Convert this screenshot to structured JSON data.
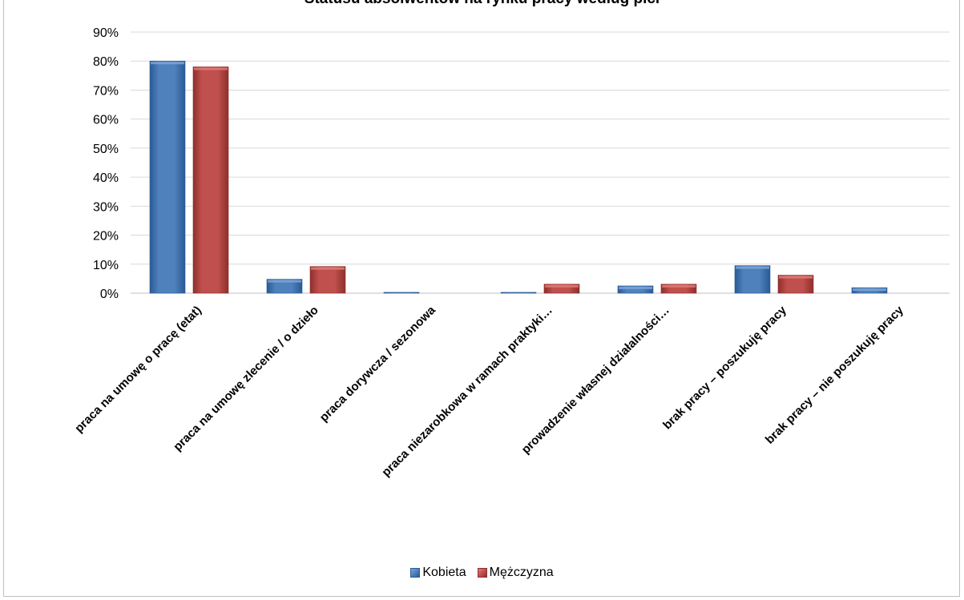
{
  "chart_data": {
    "type": "bar",
    "title": "Statusu absolwentów na rynku pracy według płci",
    "categories": [
      "praca na umowę o pracę (etat)",
      "praca na umowę zlecenie / o dzieło",
      "praca dorywcza / sezonowa",
      "praca niezarobkowa w ramach praktyki…",
      "prowadzenie własnej działalności…",
      "brak pracy – poszukuję pracy",
      "brak pracy – nie poszukuję pracy"
    ],
    "series": [
      {
        "name": "Kobieta",
        "values": [
          80,
          4.8,
          0.3,
          0.3,
          2.5,
          9.5,
          1.9
        ],
        "color": "#4f81bd",
        "color_dark": "#2a5a94",
        "color_light": "#7ea5d6"
      },
      {
        "name": "Mężczyzna",
        "values": [
          78,
          9.2,
          0,
          3.1,
          3.1,
          6.2,
          0
        ],
        "color": "#c0504d",
        "color_dark": "#8e2f2c",
        "color_light": "#e17c79"
      }
    ],
    "ylim": [
      0,
      90
    ],
    "yticks": [
      "0%",
      "10%",
      "20%",
      "30%",
      "40%",
      "50%",
      "60%",
      "70%",
      "80%",
      "90%"
    ],
    "ytick_values": [
      0,
      10,
      20,
      30,
      40,
      50,
      60,
      70,
      80,
      90
    ],
    "grid": true,
    "legend_position": "bottom"
  }
}
